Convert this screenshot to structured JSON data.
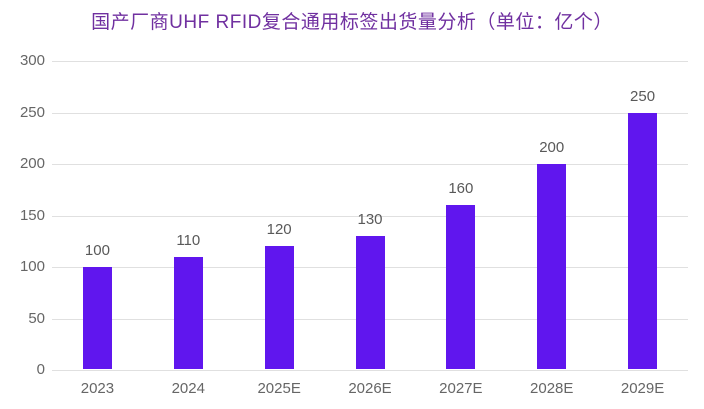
{
  "title": "国产厂商UHF RFID复合通用标签出货量分析（单位：亿个）",
  "colors": {
    "bar": "#6016ee",
    "title": "#7030A0",
    "axis_label": "#666666",
    "data_label": "#595959",
    "gridline": "#e0e0e0",
    "background": "#ffffff"
  },
  "chart_data": {
    "type": "bar",
    "title": "国产厂商UHF RFID复合通用标签出货量分析（单位：亿个）",
    "categories": [
      "2023",
      "2024",
      "2025E",
      "2026E",
      "2027E",
      "2028E",
      "2029E"
    ],
    "values": [
      100,
      110,
      120,
      130,
      160,
      200,
      250
    ],
    "data_labels_shown": true,
    "xlabel": "",
    "ylabel": "",
    "ylim": [
      0,
      300
    ],
    "yticks": [
      0,
      50,
      100,
      150,
      200,
      250,
      300
    ],
    "grid": true,
    "legend_position": "none"
  }
}
